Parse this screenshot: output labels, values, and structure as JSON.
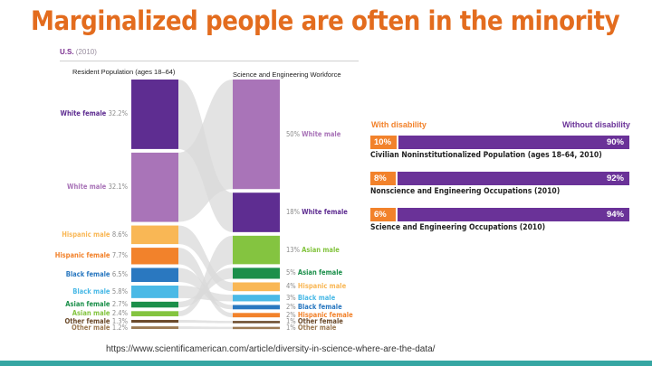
{
  "slide": {
    "title": "Marginalized people are often in the minority",
    "source": "https://www.scientificamerican.com/article/diversity-in-science-where-are-the-data/"
  },
  "left_chart": {
    "region": "U.S.",
    "year": "(2010)",
    "col1_header": "Resident Population (ages 18–64)",
    "col2_header": "Science and Engineering Workforce",
    "population": [
      {
        "label": "White female",
        "pct": "32.2%",
        "value": 32.2,
        "color": "#5e2d91"
      },
      {
        "label": "White male",
        "pct": "32.1%",
        "value": 32.1,
        "color": "#a974b8"
      },
      {
        "label": "Hispanic male",
        "pct": "8.6%",
        "value": 8.6,
        "color": "#f9b755"
      },
      {
        "label": "Hispanic female",
        "pct": "7.7%",
        "value": 7.7,
        "color": "#f2822b"
      },
      {
        "label": "Black female",
        "pct": "6.5%",
        "value": 6.5,
        "color": "#2a78c0"
      },
      {
        "label": "Black male",
        "pct": "5.8%",
        "value": 5.8,
        "color": "#4ab9e6"
      },
      {
        "label": "Asian female",
        "pct": "2.7%",
        "value": 2.7,
        "color": "#1b8f4a"
      },
      {
        "label": "Asian male",
        "pct": "2.4%",
        "value": 2.4,
        "color": "#84c440"
      },
      {
        "label": "Other female",
        "pct": "1.3%",
        "value": 1.3,
        "color": "#6b4a2b"
      },
      {
        "label": "Other male",
        "pct": "1.2%",
        "value": 1.2,
        "color": "#9c7a54"
      }
    ],
    "workforce": [
      {
        "label": "White male",
        "pct": "50%",
        "value": 50,
        "color": "#a974b8"
      },
      {
        "label": "White female",
        "pct": "18%",
        "value": 18,
        "color": "#5e2d91"
      },
      {
        "label": "Asian male",
        "pct": "13%",
        "value": 13,
        "color": "#84c440"
      },
      {
        "label": "Asian female",
        "pct": "5%",
        "value": 5,
        "color": "#1b8f4a"
      },
      {
        "label": "Hispanic male",
        "pct": "4%",
        "value": 4,
        "color": "#f9b755"
      },
      {
        "label": "Black male",
        "pct": "3%",
        "value": 3,
        "color": "#4ab9e6"
      },
      {
        "label": "Black female",
        "pct": "2%",
        "value": 2,
        "color": "#2a78c0"
      },
      {
        "label": "Hispanic female",
        "pct": "2%",
        "value": 2,
        "color": "#f2822b"
      },
      {
        "label": "Other female",
        "pct": "1%",
        "value": 1,
        "color": "#6b4a2b"
      },
      {
        "label": "Other male",
        "pct": "1%",
        "value": 1,
        "color": "#9c7a54"
      }
    ]
  },
  "right_chart": {
    "with_label": "With disability",
    "without_label": "Without disability",
    "with_color": "#f2822b",
    "without_color": "#6a3298",
    "rows": [
      {
        "with": "10%",
        "without": "90%",
        "with_value": 10,
        "without_value": 90,
        "caption": "Civilian Noninstitutionalized Population (ages 18–64, 2010)"
      },
      {
        "with": "8%",
        "without": "92%",
        "with_value": 8,
        "without_value": 92,
        "caption": "Nonscience and Engineering Occupations (2010)"
      },
      {
        "with": "6%",
        "without": "94%",
        "with_value": 6,
        "without_value": 94,
        "caption": "Science and Engineering Occupations (2010)"
      }
    ]
  },
  "theme": {
    "title_color": "#e36c1e",
    "footer_color": "#36a6a3"
  }
}
